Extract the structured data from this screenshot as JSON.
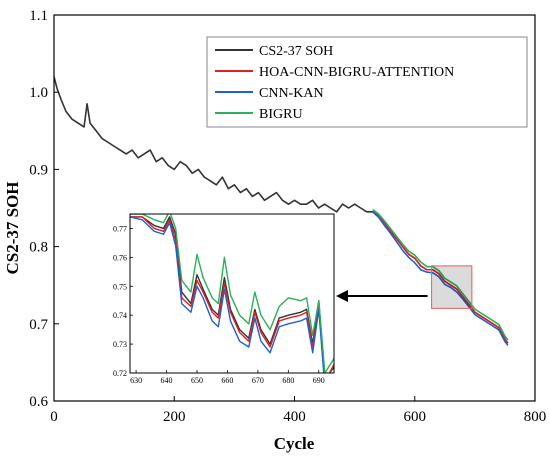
{
  "chart_data": [
    {
      "type": "line",
      "title": "",
      "xlabel": "Cycle",
      "ylabel": "CS2-37 SOH",
      "xlim": [
        0,
        800
      ],
      "ylim": [
        0.6,
        1.1
      ],
      "xticks": [
        "0",
        "200",
        "400",
        "600",
        "800"
      ],
      "yticks": [
        "0.6",
        "0.7",
        "0.8",
        "0.9",
        "1.0",
        "1.1"
      ],
      "legend_position": "top-right",
      "series": [
        {
          "name": "CS2-37 SOH",
          "color": "#333333",
          "x": [
            0,
            5,
            12,
            20,
            30,
            40,
            50,
            55,
            60,
            70,
            80,
            90,
            100,
            110,
            120,
            130,
            140,
            150,
            160,
            170,
            180,
            190,
            200,
            210,
            220,
            230,
            240,
            250,
            260,
            270,
            280,
            290,
            300,
            310,
            320,
            330,
            340,
            350,
            360,
            370,
            380,
            390,
            400,
            410,
            420,
            430,
            440,
            450,
            460,
            470,
            480,
            490,
            500,
            510,
            520,
            530,
            540,
            550,
            560,
            570,
            580,
            590,
            600,
            610,
            620,
            630,
            640,
            650,
            660,
            670,
            680,
            690,
            700,
            710,
            720,
            730,
            740,
            750,
            755
          ],
          "y": [
            1.02,
            1.005,
            0.99,
            0.975,
            0.965,
            0.96,
            0.955,
            0.985,
            0.96,
            0.95,
            0.94,
            0.935,
            0.93,
            0.925,
            0.92,
            0.925,
            0.915,
            0.92,
            0.925,
            0.91,
            0.915,
            0.905,
            0.9,
            0.91,
            0.905,
            0.895,
            0.9,
            0.89,
            0.885,
            0.88,
            0.89,
            0.875,
            0.88,
            0.87,
            0.875,
            0.865,
            0.87,
            0.86,
            0.865,
            0.87,
            0.86,
            0.855,
            0.86,
            0.855,
            0.855,
            0.86,
            0.85,
            0.855,
            0.85,
            0.845,
            0.855,
            0.85,
            0.855,
            0.85,
            0.845,
            0.845,
            0.84,
            0.83,
            0.82,
            0.81,
            0.8,
            0.79,
            0.785,
            0.775,
            0.77,
            0.77,
            0.765,
            0.755,
            0.75,
            0.745,
            0.735,
            0.725,
            0.715,
            0.71,
            0.705,
            0.7,
            0.695,
            0.68,
            0.675
          ]
        },
        {
          "name": "HOA-CNN-BIGRU-ATTENTION",
          "color": "#e02020",
          "x": [
            530,
            540,
            550,
            560,
            570,
            580,
            590,
            600,
            610,
            620,
            630,
            640,
            650,
            660,
            670,
            680,
            690,
            700,
            710,
            720,
            730,
            740,
            750,
            755
          ],
          "y": [
            0.846,
            0.84,
            0.83,
            0.82,
            0.81,
            0.8,
            0.79,
            0.785,
            0.775,
            0.77,
            0.77,
            0.765,
            0.755,
            0.75,
            0.745,
            0.735,
            0.725,
            0.715,
            0.71,
            0.705,
            0.7,
            0.695,
            0.68,
            0.675
          ]
        },
        {
          "name": "CNN-KAN",
          "color": "#1f5fd6",
          "x": [
            530,
            540,
            550,
            560,
            570,
            580,
            590,
            600,
            610,
            620,
            630,
            640,
            650,
            660,
            670,
            680,
            690,
            700,
            710,
            720,
            730,
            740,
            750,
            755
          ],
          "y": [
            0.845,
            0.838,
            0.827,
            0.817,
            0.806,
            0.795,
            0.786,
            0.779,
            0.77,
            0.767,
            0.766,
            0.761,
            0.751,
            0.747,
            0.741,
            0.732,
            0.722,
            0.712,
            0.707,
            0.702,
            0.697,
            0.692,
            0.677,
            0.672
          ]
        },
        {
          "name": "BIGRU",
          "color": "#2bb05a",
          "x": [
            530,
            540,
            550,
            560,
            570,
            580,
            590,
            600,
            610,
            620,
            630,
            640,
            650,
            660,
            670,
            680,
            690,
            700,
            710,
            720,
            730,
            740,
            750,
            755
          ],
          "y": [
            0.848,
            0.842,
            0.833,
            0.823,
            0.813,
            0.803,
            0.794,
            0.789,
            0.78,
            0.774,
            0.774,
            0.769,
            0.759,
            0.754,
            0.749,
            0.739,
            0.729,
            0.719,
            0.714,
            0.709,
            0.704,
            0.699,
            0.684,
            0.679
          ]
        }
      ]
    },
    {
      "type": "line",
      "title": "",
      "xlim": [
        628,
        695
      ],
      "ylim": [
        0.72,
        0.775
      ],
      "xticks": [
        "630",
        "640",
        "650",
        "660",
        "670",
        "680",
        "690"
      ],
      "yticks": [
        "0.72",
        "0.73",
        "0.74",
        "0.75",
        "0.76",
        "0.77"
      ],
      "series": [
        {
          "name": "CS2-37 SOH",
          "color": "#333333",
          "x": [
            628,
            632,
            636,
            639,
            641,
            643,
            645,
            648,
            650,
            652,
            655,
            657,
            659,
            661,
            664,
            667,
            669,
            671,
            674,
            677,
            680,
            684,
            686,
            688,
            690,
            692,
            695
          ],
          "y": [
            0.774,
            0.774,
            0.771,
            0.77,
            0.774,
            0.768,
            0.748,
            0.744,
            0.754,
            0.749,
            0.742,
            0.74,
            0.753,
            0.742,
            0.735,
            0.732,
            0.742,
            0.735,
            0.73,
            0.739,
            0.74,
            0.741,
            0.742,
            0.73,
            0.745,
            0.718,
            0.722
          ]
        },
        {
          "name": "HOA-CNN-BIGRU-ATTENTION",
          "color": "#e02020",
          "x": [
            628,
            632,
            636,
            639,
            641,
            643,
            645,
            648,
            650,
            652,
            655,
            657,
            659,
            661,
            664,
            667,
            669,
            671,
            674,
            677,
            680,
            684,
            686,
            688,
            690,
            692,
            695
          ],
          "y": [
            0.774,
            0.774,
            0.77,
            0.769,
            0.773,
            0.766,
            0.746,
            0.743,
            0.752,
            0.748,
            0.741,
            0.739,
            0.751,
            0.741,
            0.734,
            0.731,
            0.741,
            0.734,
            0.729,
            0.738,
            0.739,
            0.74,
            0.741,
            0.729,
            0.743,
            0.717,
            0.723
          ]
        },
        {
          "name": "CNN-KAN",
          "color": "#1f5fd6",
          "x": [
            628,
            632,
            636,
            639,
            641,
            643,
            645,
            648,
            650,
            652,
            655,
            657,
            659,
            661,
            664,
            667,
            669,
            671,
            674,
            677,
            680,
            684,
            686,
            688,
            690,
            692,
            695
          ],
          "y": [
            0.774,
            0.773,
            0.769,
            0.768,
            0.772,
            0.764,
            0.744,
            0.741,
            0.75,
            0.746,
            0.738,
            0.736,
            0.749,
            0.738,
            0.731,
            0.729,
            0.739,
            0.731,
            0.727,
            0.736,
            0.737,
            0.738,
            0.739,
            0.727,
            0.742,
            0.715,
            0.72
          ]
        },
        {
          "name": "BIGRU",
          "color": "#2bb05a",
          "x": [
            628,
            632,
            636,
            639,
            641,
            643,
            645,
            648,
            650,
            652,
            655,
            657,
            659,
            661,
            664,
            667,
            669,
            671,
            674,
            677,
            680,
            684,
            686,
            688,
            690,
            692,
            695
          ],
          "y": [
            0.775,
            0.775,
            0.773,
            0.772,
            0.776,
            0.77,
            0.752,
            0.748,
            0.761,
            0.753,
            0.746,
            0.744,
            0.76,
            0.747,
            0.74,
            0.737,
            0.748,
            0.74,
            0.735,
            0.743,
            0.746,
            0.745,
            0.746,
            0.733,
            0.745,
            0.72,
            0.725
          ]
        }
      ]
    }
  ]
}
